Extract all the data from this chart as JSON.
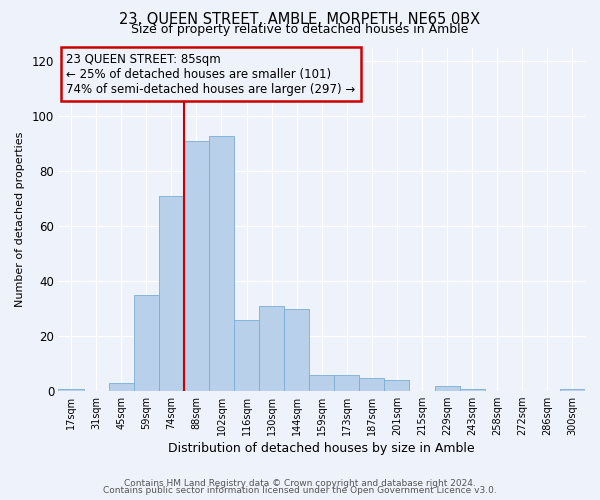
{
  "title": "23, QUEEN STREET, AMBLE, MORPETH, NE65 0BX",
  "subtitle": "Size of property relative to detached houses in Amble",
  "xlabel": "Distribution of detached houses by size in Amble",
  "ylabel": "Number of detached properties",
  "footer_line1": "Contains HM Land Registry data © Crown copyright and database right 2024.",
  "footer_line2": "Contains public sector information licensed under the Open Government Licence v3.0.",
  "bar_labels": [
    "17sqm",
    "31sqm",
    "45sqm",
    "59sqm",
    "74sqm",
    "88sqm",
    "102sqm",
    "116sqm",
    "130sqm",
    "144sqm",
    "159sqm",
    "173sqm",
    "187sqm",
    "201sqm",
    "215sqm",
    "229sqm",
    "243sqm",
    "258sqm",
    "272sqm",
    "286sqm",
    "300sqm"
  ],
  "bar_values": [
    1,
    0,
    3,
    35,
    71,
    91,
    93,
    26,
    31,
    30,
    6,
    6,
    5,
    4,
    0,
    2,
    1,
    0,
    0,
    0,
    1
  ],
  "bar_color": "#b8d0ea",
  "bar_edgecolor": "#7aadd4",
  "ylim": [
    0,
    125
  ],
  "yticks": [
    0,
    20,
    40,
    60,
    80,
    100,
    120
  ],
  "annotation_title": "23 QUEEN STREET: 85sqm",
  "annotation_line1": "← 25% of detached houses are smaller (101)",
  "annotation_line2": "74% of semi-detached houses are larger (297) →",
  "vline_color": "#cc0000",
  "box_edgecolor": "#cc0000",
  "background_color": "#eef2fa"
}
